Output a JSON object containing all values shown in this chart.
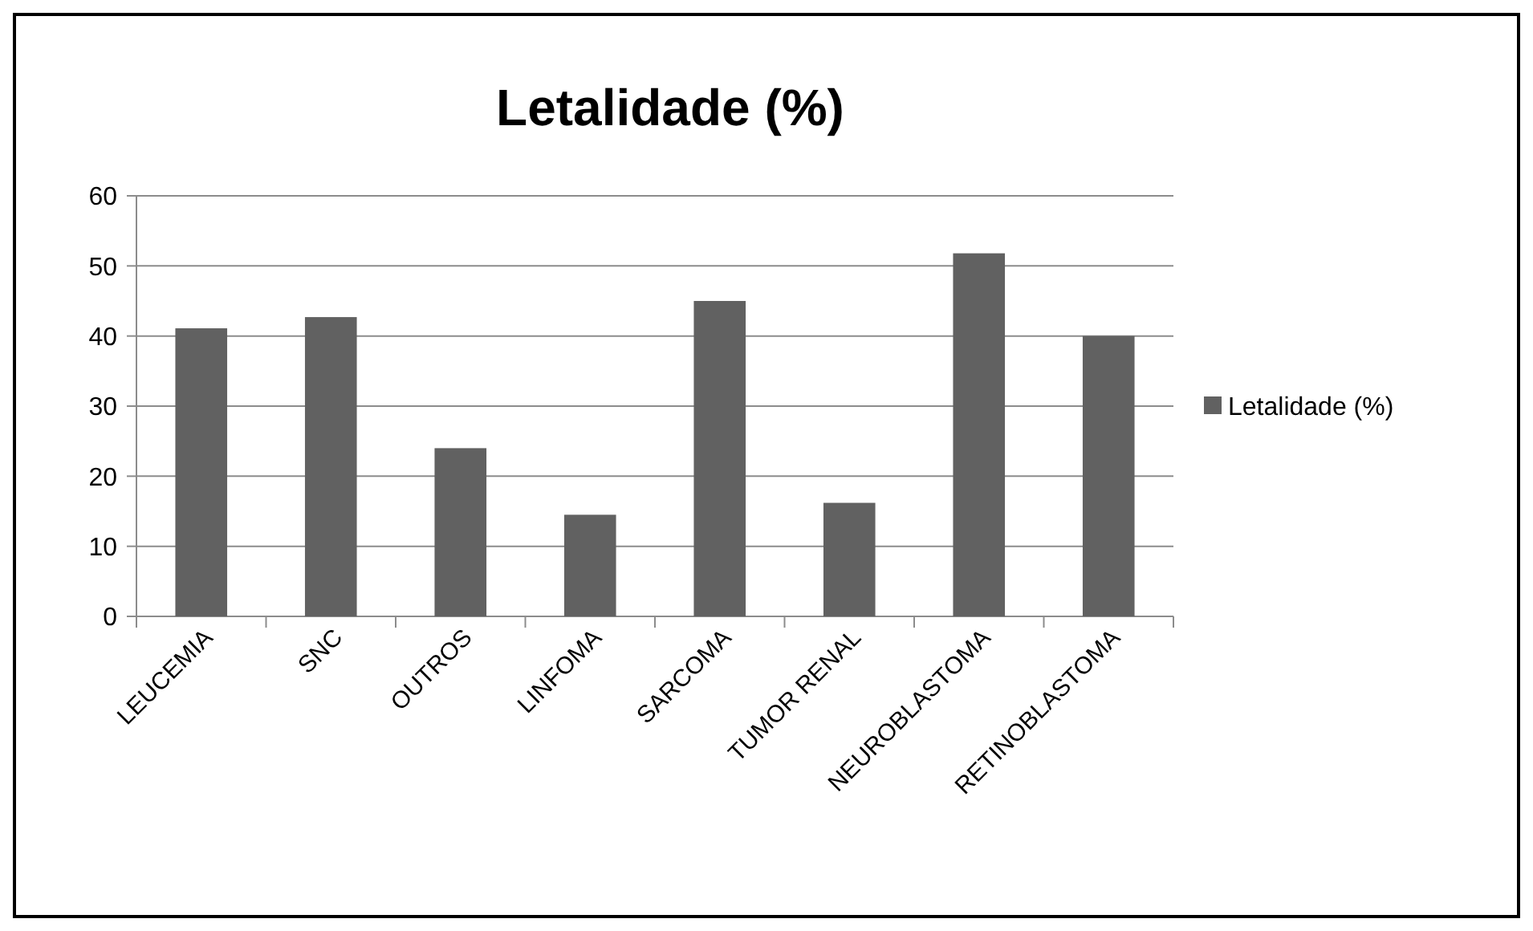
{
  "chart_data": {
    "type": "bar",
    "title": "Letalidade (%)",
    "categories": [
      "LEUCEMIA",
      "SNC",
      "OUTROS",
      "LINFOMA",
      "SARCOMA",
      "TUMOR RENAL",
      "NEUROBLASTOMA",
      "RETINOBLASTOMA"
    ],
    "series": [
      {
        "name": "Letalidade (%)",
        "color": "#616161",
        "values": [
          41.1,
          42.7,
          24.0,
          14.5,
          45.0,
          16.2,
          51.8,
          40.0
        ]
      }
    ],
    "ylim": [
      0,
      60
    ],
    "yticks": [
      0,
      10,
      20,
      30,
      40,
      50,
      60
    ],
    "grid": "y",
    "legend": "right"
  }
}
